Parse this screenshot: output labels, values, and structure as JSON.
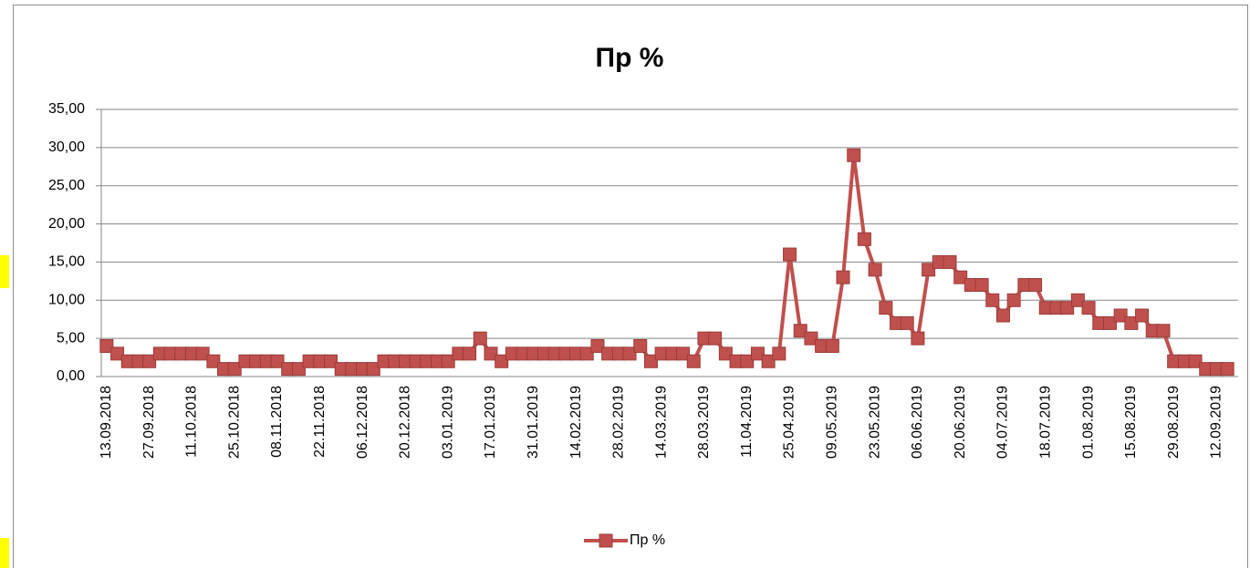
{
  "chart_data": {
    "type": "line",
    "title": "Пр %",
    "categories": [
      "13.09.2018",
      null,
      null,
      null,
      "27.09.2018",
      null,
      null,
      null,
      "11.10.2018",
      null,
      null,
      null,
      "25.10.2018",
      null,
      null,
      null,
      "08.11.2018",
      null,
      null,
      null,
      "22.11.2018",
      null,
      null,
      null,
      "06.12.2018",
      null,
      null,
      null,
      "20.12.2018",
      null,
      null,
      null,
      "03.01.2019",
      null,
      null,
      null,
      "17.01.2019",
      null,
      null,
      null,
      "31.01.2019",
      null,
      null,
      null,
      "14.02.2019",
      null,
      null,
      null,
      "28.02.2019",
      null,
      null,
      null,
      "14.03.2019",
      null,
      null,
      null,
      "28.03.2019",
      null,
      null,
      null,
      "11.04.2019",
      null,
      null,
      null,
      "25.04.2019",
      null,
      null,
      null,
      "09.05.2019",
      null,
      null,
      null,
      "23.05.2019",
      null,
      null,
      null,
      "06.06.2019",
      null,
      null,
      null,
      "20.06.2019",
      null,
      null,
      null,
      "04.07.2019",
      null,
      null,
      null,
      "18.07.2019",
      null,
      null,
      null,
      "01.08.2019",
      null,
      null,
      null,
      "15.08.2019",
      null,
      null,
      null,
      "29.08.2019",
      null,
      null,
      null,
      "12.09.2019",
      null
    ],
    "series": [
      {
        "name": "Пр %",
        "color": "#c0504d",
        "values": [
          4,
          3,
          2,
          2,
          2,
          3,
          3,
          3,
          3,
          3,
          2,
          1,
          1,
          2,
          2,
          2,
          2,
          1,
          1,
          2,
          2,
          2,
          1,
          1,
          1,
          1,
          2,
          2,
          2,
          2,
          2,
          2,
          2,
          3,
          3,
          5,
          3,
          2,
          3,
          3,
          3,
          3,
          3,
          3,
          3,
          3,
          4,
          3,
          3,
          3,
          4,
          2,
          3,
          3,
          3,
          2,
          5,
          5,
          3,
          2,
          2,
          3,
          2,
          3,
          16,
          6,
          5,
          4,
          4,
          13,
          29,
          18,
          14,
          9,
          7,
          7,
          5,
          14,
          15,
          15,
          13,
          12,
          12,
          10,
          8,
          10,
          12,
          12,
          9,
          9,
          9,
          10,
          9,
          7,
          7,
          8,
          7,
          8,
          6,
          6,
          2,
          2,
          2,
          1,
          1,
          1
        ]
      }
    ],
    "ylim": [
      0,
      35
    ],
    "yticks": [
      {
        "value": 0,
        "label": "0,00"
      },
      {
        "value": 5,
        "label": "5,00"
      },
      {
        "value": 10,
        "label": "10,00"
      },
      {
        "value": 15,
        "label": "15,00"
      },
      {
        "value": 20,
        "label": "20,00"
      },
      {
        "value": 25,
        "label": "25,00"
      },
      {
        "value": 30,
        "label": "30,00"
      },
      {
        "value": 35,
        "label": "35,00"
      }
    ],
    "grid": true,
    "legend": "bottom"
  }
}
